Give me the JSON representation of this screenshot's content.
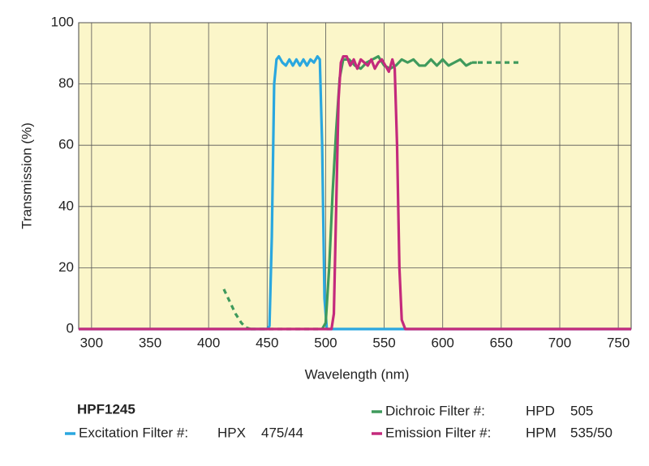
{
  "chart_data": {
    "type": "line",
    "x_label": "Wavelength (nm)",
    "y_label": "Transmission (%)",
    "xlim": [
      289,
      761
    ],
    "xticks": [
      300,
      350,
      400,
      450,
      500,
      550,
      600,
      650,
      700,
      750
    ],
    "ylim": [
      0,
      100
    ],
    "yticks": [
      0,
      20,
      40,
      60,
      80,
      100
    ],
    "grid": true,
    "background": "#fbf6c9",
    "legend_title": "HPF1245",
    "series": [
      {
        "name": "Excitation Filter #:",
        "part": "HPX",
        "spec": "475/44",
        "color": "#2aa7df",
        "x": [
          289,
          440,
          450,
          452,
          454,
          456,
          458,
          460,
          463,
          466,
          469,
          472,
          475,
          478,
          481,
          484,
          487,
          490,
          493,
          495,
          497,
          499,
          501,
          505,
          761
        ],
        "values": [
          0,
          0,
          0,
          1,
          30,
          80,
          88,
          89,
          87,
          86,
          88,
          86,
          88,
          86,
          88,
          86,
          88,
          87,
          89,
          88,
          60,
          10,
          0,
          0,
          0
        ]
      },
      {
        "name": "Dichroic Filter #:",
        "part": "HPD",
        "spec": "505",
        "color": "#3f9a5c",
        "dashed": [
          [
            413,
            436
          ],
          [
            630,
            668
          ]
        ],
        "x": [
          413,
          418,
          423,
          428,
          432,
          436,
          497,
          500,
          503,
          506,
          509,
          512,
          515,
          520,
          525,
          530,
          535,
          540,
          545,
          550,
          555,
          560,
          565,
          570,
          575,
          580,
          585,
          590,
          595,
          600,
          605,
          610,
          615,
          620,
          625,
          630,
          640,
          650,
          660,
          668
        ],
        "values": [
          13,
          9,
          5,
          2,
          0.5,
          0,
          0,
          2,
          20,
          45,
          65,
          82,
          88,
          88,
          86,
          85,
          87,
          88,
          89,
          86,
          85,
          86,
          88,
          87,
          88,
          86,
          86,
          88,
          86,
          88,
          86,
          87,
          88,
          86,
          87,
          87,
          87,
          87,
          87,
          87
        ]
      },
      {
        "name": "Emission Filter #:",
        "part": "HPM",
        "spec": "535/50",
        "color": "#c42a7c",
        "x": [
          289,
          505,
          507,
          509,
          511,
          513,
          515,
          518,
          521,
          524,
          527,
          530,
          533,
          536,
          539,
          542,
          545,
          548,
          551,
          554,
          557,
          559,
          561,
          563,
          565,
          568,
          761
        ],
        "values": [
          0,
          0,
          5,
          40,
          75,
          87,
          89,
          89,
          86,
          88,
          85,
          88,
          87,
          86,
          88,
          85,
          87,
          88,
          86,
          84,
          88,
          85,
          60,
          20,
          3,
          0,
          0
        ]
      }
    ]
  }
}
